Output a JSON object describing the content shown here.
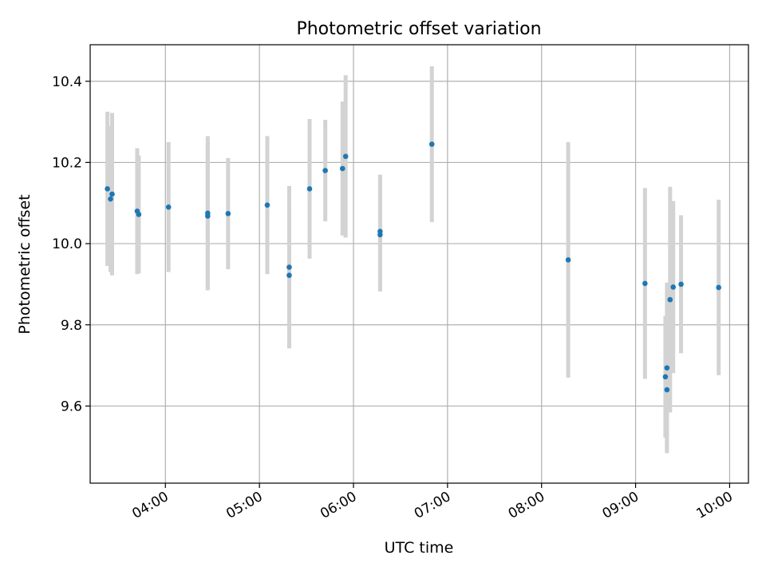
{
  "chart_data": {
    "type": "scatter",
    "title": "Photometric offset variation",
    "xlabel": "UTC time",
    "ylabel": "Photometric offset",
    "xlim": [
      "03:12",
      "10:12"
    ],
    "ylim": [
      9.41,
      10.49
    ],
    "grid": true,
    "x_ticks": [
      "04:00",
      "05:00",
      "06:00",
      "07:00",
      "08:00",
      "09:00",
      "10:00"
    ],
    "y_ticks": [
      9.6,
      9.8,
      10.0,
      10.2,
      10.4
    ],
    "y_tick_labels": [
      "9.6",
      "9.8",
      "10.0",
      "10.2",
      "10.4"
    ],
    "point_color": "#1f77b4",
    "errorbar_color": "#d3d3d3",
    "series": [
      {
        "points": [
          {
            "x": "03:23",
            "y": 10.135,
            "err": 0.19
          },
          {
            "x": "03:25",
            "y": 10.11,
            "err": 0.18
          },
          {
            "x": "03:26",
            "y": 10.122,
            "err": 0.2
          },
          {
            "x": "03:42",
            "y": 10.08,
            "err": 0.155
          },
          {
            "x": "03:43",
            "y": 10.072,
            "err": 0.145
          },
          {
            "x": "04:02",
            "y": 10.09,
            "err": 0.16
          },
          {
            "x": "04:27",
            "y": 10.075,
            "err": 0.19
          },
          {
            "x": "04:27",
            "y": 10.068,
            "err": 0.18
          },
          {
            "x": "04:40",
            "y": 10.074,
            "err": 0.137
          },
          {
            "x": "05:05",
            "y": 10.095,
            "err": 0.17
          },
          {
            "x": "05:19",
            "y": 9.942,
            "err": 0.2
          },
          {
            "x": "05:19",
            "y": 9.922,
            "err": 0.16
          },
          {
            "x": "05:32",
            "y": 10.135,
            "err": 0.172
          },
          {
            "x": "05:42",
            "y": 10.18,
            "err": 0.125
          },
          {
            "x": "05:53",
            "y": 10.185,
            "err": 0.165
          },
          {
            "x": "05:55",
            "y": 10.215,
            "err": 0.2
          },
          {
            "x": "06:17",
            "y": 10.022,
            "err": 0.14
          },
          {
            "x": "06:17",
            "y": 10.03,
            "err": 0.14
          },
          {
            "x": "06:50",
            "y": 10.245,
            "err": 0.192
          },
          {
            "x": "08:17",
            "y": 9.96,
            "err": 0.29
          },
          {
            "x": "09:06",
            "y": 9.902,
            "err": 0.235
          },
          {
            "x": "09:19",
            "y": 9.672,
            "err": 0.15
          },
          {
            "x": "09:20",
            "y": 9.64,
            "err": 0.15
          },
          {
            "x": "09:20",
            "y": 9.694,
            "err": 0.21
          },
          {
            "x": "09:22",
            "y": 9.862,
            "err": 0.278
          },
          {
            "x": "09:24",
            "y": 9.893,
            "err": 0.212
          },
          {
            "x": "09:29",
            "y": 9.9,
            "err": 0.17
          },
          {
            "x": "09:53",
            "y": 9.892,
            "err": 0.216
          }
        ]
      }
    ]
  }
}
